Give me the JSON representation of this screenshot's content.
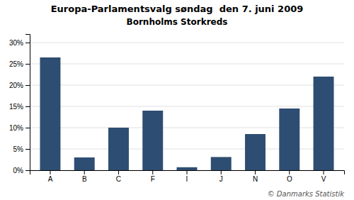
{
  "chart_data": {
    "type": "bar",
    "title": "Europa-Parlamentsvalg søndag  den 7. juni 2009",
    "subtitle": "Bornholms Storkreds",
    "categories": [
      "A",
      "B",
      "C",
      "F",
      "I",
      "J",
      "N",
      "O",
      "V"
    ],
    "values": [
      26.5,
      3.0,
      10.0,
      14.0,
      0.7,
      3.1,
      8.5,
      14.5,
      22.0
    ],
    "color": "#2e4d72",
    "ylim": [
      0,
      32
    ],
    "yticks": [
      {
        "value": 0,
        "label": "0%"
      },
      {
        "value": 5,
        "label": "5%"
      },
      {
        "value": 10,
        "label": "10%"
      },
      {
        "value": 15,
        "label": "15%"
      },
      {
        "value": 20,
        "label": "20%"
      },
      {
        "value": 25,
        "label": "25%"
      },
      {
        "value": 30,
        "label": "30%"
      }
    ],
    "grid": true,
    "annotations": [
      "© Danmarks Statistik"
    ]
  }
}
